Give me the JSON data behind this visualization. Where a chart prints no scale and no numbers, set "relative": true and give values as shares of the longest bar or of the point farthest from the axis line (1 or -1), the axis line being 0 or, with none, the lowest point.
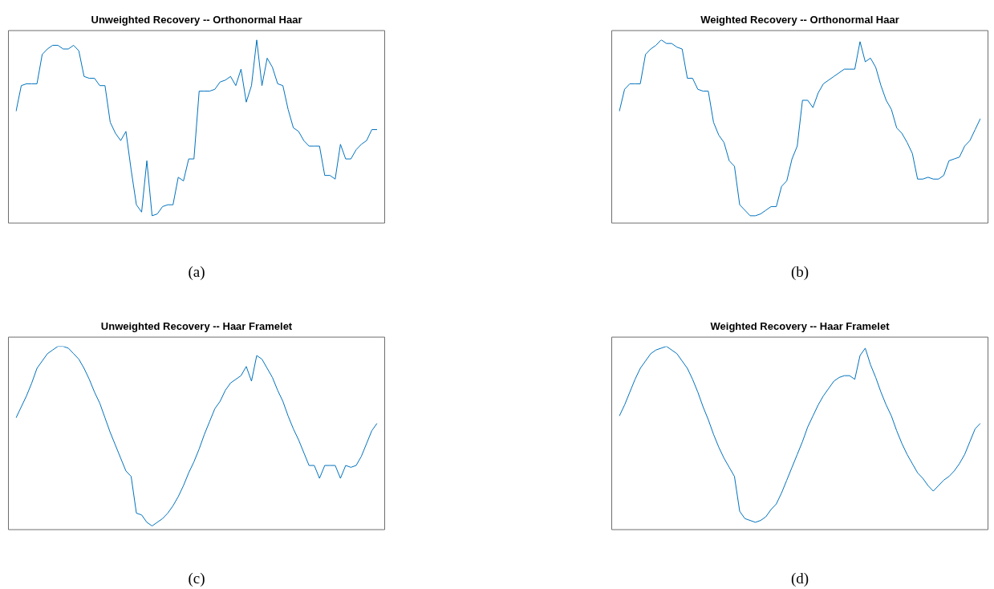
{
  "chart_data": [
    {
      "type": "line",
      "title": "Unweighted Recovery -- Orthonormal Haar",
      "relative": true,
      "annotations": [
        "(a)"
      ],
      "categories": [
        null,
        null,
        null,
        null,
        null,
        null,
        null,
        null,
        null,
        null,
        null,
        null,
        null,
        null,
        null,
        null,
        null,
        null,
        null,
        null,
        null,
        null,
        null,
        null,
        null,
        null,
        null,
        null,
        null,
        null,
        null,
        null,
        null,
        null,
        null,
        null,
        null,
        null,
        null,
        null,
        null,
        null,
        null,
        null,
        null,
        null,
        null,
        null,
        null,
        null,
        null,
        null,
        null,
        null,
        null,
        null,
        null,
        null,
        null,
        null,
        null,
        null,
        null,
        null,
        null,
        null,
        null,
        null,
        null,
        null
      ],
      "series": [
        {
          "color": "#0072bd",
          "values": [
            0.61,
            0.75,
            0.76,
            0.76,
            0.76,
            0.92,
            0.95,
            0.97,
            0.97,
            0.95,
            0.95,
            0.97,
            0.94,
            0.8,
            0.79,
            0.79,
            0.75,
            0.75,
            0.55,
            0.49,
            0.45,
            0.5,
            0.29,
            0.1,
            0.06,
            0.34,
            0.04,
            0.05,
            0.09,
            0.1,
            0.1,
            0.25,
            0.23,
            0.35,
            0.35,
            0.72,
            0.72,
            0.72,
            0.73,
            0.77,
            0.78,
            0.8,
            0.75,
            0.84,
            0.66,
            0.75,
            1,
            0.75,
            0.9,
            0.85,
            0.76,
            0.75,
            0.62,
            0.52,
            0.5,
            0.45,
            0.42,
            0.42,
            0.42,
            0.26,
            0.26,
            0.24,
            0.43,
            0.35,
            0.35,
            0.4,
            0.43,
            0.45,
            0.51,
            0.51
          ]
        }
      ]
    },
    {
      "type": "line",
      "title": "Weighted Recovery -- Orthonormal Haar",
      "relative": true,
      "annotations": [
        "(b)"
      ],
      "categories": [
        null,
        null,
        null,
        null,
        null,
        null,
        null,
        null,
        null,
        null,
        null,
        null,
        null,
        null,
        null,
        null,
        null,
        null,
        null,
        null,
        null,
        null,
        null,
        null,
        null,
        null,
        null,
        null,
        null,
        null,
        null,
        null,
        null,
        null,
        null,
        null,
        null,
        null,
        null,
        null,
        null,
        null,
        null,
        null,
        null,
        null,
        null,
        null,
        null,
        null,
        null,
        null,
        null,
        null,
        null,
        null,
        null,
        null,
        null,
        null,
        null,
        null,
        null,
        null,
        null,
        null,
        null,
        null,
        null,
        null
      ],
      "series": [
        {
          "color": "#0072bd",
          "values": [
            0.61,
            0.73,
            0.76,
            0.76,
            0.76,
            0.92,
            0.95,
            0.97,
            1,
            0.98,
            0.98,
            0.96,
            0.95,
            0.79,
            0.79,
            0.73,
            0.72,
            0.72,
            0.55,
            0.48,
            0.44,
            0.34,
            0.31,
            0.1,
            0.07,
            0.04,
            0.04,
            0.05,
            0.07,
            0.09,
            0.09,
            0.2,
            0.23,
            0.35,
            0.42,
            0.67,
            0.67,
            0.63,
            0.71,
            0.76,
            0.78,
            0.8,
            0.82,
            0.84,
            0.84,
            0.84,
            0.99,
            0.88,
            0.9,
            0.85,
            0.75,
            0.67,
            0.62,
            0.52,
            0.49,
            0.44,
            0.38,
            0.24,
            0.24,
            0.25,
            0.24,
            0.24,
            0.26,
            0.34,
            0.35,
            0.36,
            0.42,
            0.45,
            0.51,
            0.57
          ]
        }
      ]
    },
    {
      "type": "line",
      "title": "Unweighted Recovery -- Haar Framelet",
      "relative": true,
      "annotations": [
        "(c)"
      ],
      "categories": [
        null,
        null,
        null,
        null,
        null,
        null,
        null,
        null,
        null,
        null,
        null,
        null,
        null,
        null,
        null,
        null,
        null,
        null,
        null,
        null,
        null,
        null,
        null,
        null,
        null,
        null,
        null,
        null,
        null,
        null,
        null,
        null,
        null,
        null,
        null,
        null,
        null,
        null,
        null,
        null,
        null,
        null,
        null,
        null,
        null,
        null,
        null,
        null,
        null,
        null,
        null,
        null,
        null,
        null,
        null,
        null,
        null,
        null,
        null,
        null,
        null,
        null,
        null,
        null,
        null,
        null,
        null,
        null,
        null,
        null
      ],
      "series": [
        {
          "color": "#0072bd",
          "values": [
            0.61,
            0.67,
            0.73,
            0.8,
            0.88,
            0.92,
            0.96,
            0.98,
            1,
            1,
            0.99,
            0.96,
            0.93,
            0.88,
            0.82,
            0.75,
            0.69,
            0.61,
            0.53,
            0.46,
            0.39,
            0.32,
            0.29,
            0.09,
            0.08,
            0.04,
            0.02,
            0.04,
            0.06,
            0.09,
            0.13,
            0.18,
            0.24,
            0.31,
            0.37,
            0.44,
            0.52,
            0.59,
            0.66,
            0.7,
            0.76,
            0.8,
            0.82,
            0.84,
            0.89,
            0.81,
            0.95,
            0.93,
            0.88,
            0.83,
            0.76,
            0.7,
            0.62,
            0.55,
            0.49,
            0.42,
            0.35,
            0.35,
            0.28,
            0.35,
            0.35,
            0.35,
            0.28,
            0.35,
            0.34,
            0.35,
            0.4,
            0.47,
            0.54,
            0.58
          ]
        }
      ]
    },
    {
      "type": "line",
      "title": "Weighted Recovery -- Haar Framelet",
      "relative": true,
      "annotations": [
        "(d)"
      ],
      "categories": [
        null,
        null,
        null,
        null,
        null,
        null,
        null,
        null,
        null,
        null,
        null,
        null,
        null,
        null,
        null,
        null,
        null,
        null,
        null,
        null,
        null,
        null,
        null,
        null,
        null,
        null,
        null,
        null,
        null,
        null,
        null,
        null,
        null,
        null,
        null,
        null,
        null,
        null,
        null,
        null,
        null,
        null,
        null,
        null,
        null,
        null,
        null,
        null,
        null,
        null,
        null,
        null,
        null,
        null,
        null,
        null,
        null,
        null,
        null,
        null,
        null,
        null,
        null,
        null,
        null,
        null,
        null,
        null,
        null,
        null
      ],
      "series": [
        {
          "color": "#0072bd",
          "values": [
            0.62,
            0.68,
            0.75,
            0.82,
            0.88,
            0.92,
            0.96,
            0.98,
            0.99,
            1,
            0.98,
            0.96,
            0.92,
            0.88,
            0.82,
            0.75,
            0.67,
            0.6,
            0.52,
            0.45,
            0.39,
            0.34,
            0.29,
            0.1,
            0.06,
            0.05,
            0.04,
            0.05,
            0.07,
            0.11,
            0.14,
            0.2,
            0.27,
            0.34,
            0.41,
            0.48,
            0.56,
            0.62,
            0.68,
            0.73,
            0.77,
            0.81,
            0.83,
            0.84,
            0.84,
            0.82,
            0.95,
            0.99,
            0.9,
            0.83,
            0.75,
            0.68,
            0.62,
            0.54,
            0.47,
            0.41,
            0.36,
            0.31,
            0.28,
            0.24,
            0.21,
            0.24,
            0.27,
            0.29,
            0.32,
            0.36,
            0.41,
            0.48,
            0.55,
            0.58
          ]
        }
      ]
    }
  ]
}
